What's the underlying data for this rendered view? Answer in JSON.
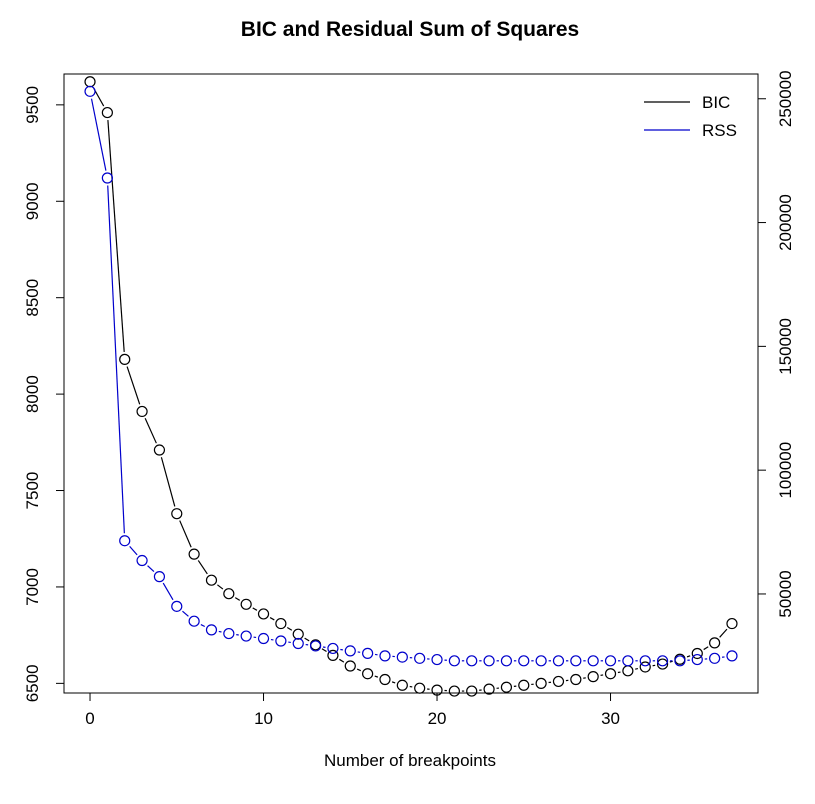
{
  "chart_data": {
    "type": "line",
    "title": "BIC and Residual Sum of Squares",
    "xlabel": "Number of breakpoints",
    "ylabel_left": "",
    "ylabel_right": "",
    "xlim": [
      -1.5,
      38.5
    ],
    "ylim_left": [
      6450,
      9660
    ],
    "ylim_right": [
      10000,
      260000
    ],
    "x_ticks": [
      0,
      10,
      20,
      30
    ],
    "y_ticks_left": [
      6500,
      7000,
      7500,
      8000,
      8500,
      9000,
      9500
    ],
    "y_ticks_right": [
      50000,
      100000,
      150000,
      200000,
      250000
    ],
    "grid": false,
    "legend_position": "top-right",
    "x": [
      0,
      1,
      2,
      3,
      4,
      5,
      6,
      7,
      8,
      9,
      10,
      11,
      12,
      13,
      14,
      15,
      16,
      17,
      18,
      19,
      20,
      21,
      22,
      23,
      24,
      25,
      26,
      27,
      28,
      29,
      30,
      31,
      32,
      33,
      34,
      35,
      36,
      37
    ],
    "series": [
      {
        "name": "BIC",
        "axis": "left",
        "color": "#000000",
        "values": [
          9620,
          9460,
          8180,
          7910,
          7710,
          7380,
          7170,
          7035,
          6965,
          6910,
          6860,
          6810,
          6755,
          6700,
          6645,
          6590,
          6550,
          6520,
          6490,
          6475,
          6465,
          6460,
          6460,
          6470,
          6480,
          6490,
          6500,
          6510,
          6520,
          6535,
          6550,
          6565,
          6585,
          6600,
          6625,
          6655,
          6710,
          6810
        ]
      },
      {
        "name": "RSS",
        "axis": "right",
        "color": "#0000cc",
        "values": [
          253000,
          218000,
          71500,
          63500,
          57000,
          45000,
          39000,
          35500,
          34000,
          33000,
          32000,
          31000,
          30000,
          29000,
          28000,
          27000,
          26000,
          25000,
          24500,
          24000,
          23500,
          23000,
          23000,
          23000,
          23000,
          23000,
          23000,
          23000,
          23000,
          23000,
          23000,
          23000,
          23000,
          23000,
          23000,
          23500,
          24000,
          25000
        ]
      }
    ]
  }
}
